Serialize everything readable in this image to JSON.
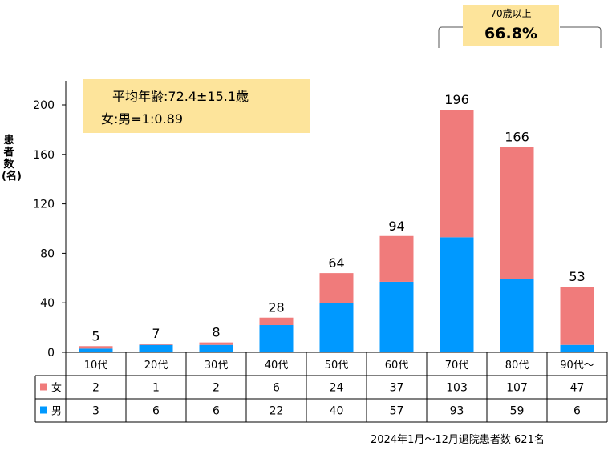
{
  "callout": {
    "label": "70歳以上",
    "value": "66.8%"
  },
  "avg_box": {
    "line1": "平均年齢:72.4±15.1歳",
    "line2": "女:男=1:0.89"
  },
  "y_axis_label": "患者数(名)",
  "footer": "2024年1月〜12月退院患者数 621名",
  "colors": {
    "female": "#f07b7b",
    "male": "#0099ff",
    "box": "#fde49b"
  },
  "chart_data": {
    "type": "bar",
    "stacked": true,
    "categories": [
      "10代",
      "20代",
      "30代",
      "40代",
      "50代",
      "60代",
      "70代",
      "80代",
      "90代〜"
    ],
    "series": [
      {
        "name": "男",
        "values": [
          3,
          6,
          6,
          22,
          40,
          57,
          93,
          59,
          6
        ],
        "color": "#0099ff"
      },
      {
        "name": "女",
        "values": [
          2,
          1,
          2,
          6,
          24,
          37,
          103,
          107,
          47
        ],
        "color": "#f07b7b"
      }
    ],
    "totals": [
      5,
      7,
      8,
      28,
      64,
      94,
      196,
      166,
      53
    ],
    "ylabel": "患者数(名)",
    "yticks": [
      0,
      40,
      80,
      120,
      160,
      200
    ],
    "ylim": [
      0,
      220
    ],
    "table_rows": [
      {
        "label": "女",
        "values": [
          2,
          1,
          2,
          6,
          24,
          37,
          103,
          107,
          47
        ],
        "color": "#f07b7b"
      },
      {
        "label": "男",
        "values": [
          3,
          6,
          6,
          22,
          40,
          57,
          93,
          59,
          6
        ],
        "color": "#0099ff"
      }
    ]
  }
}
